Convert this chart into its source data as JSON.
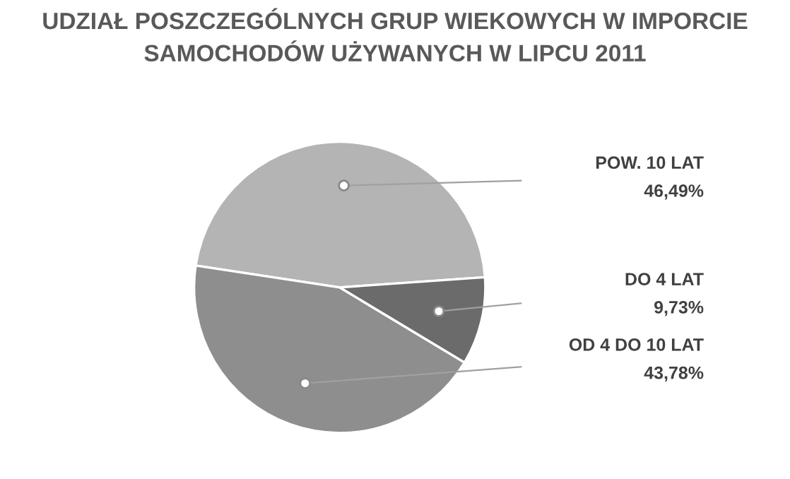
{
  "chart_data": {
    "type": "pie",
    "title": "UDZIAŁ POSZCZEGÓLNYCH GRUP WIEKOWYCH W IMPORCIE\nSAMOCHODÓW UŻYWANYCH W LIPCU 2011",
    "categories": [
      "POW. 10 LAT",
      "OD 4 DO 10 LAT",
      "DO 4 LAT"
    ],
    "values": [
      46.49,
      43.78,
      9.73
    ],
    "value_labels": [
      "46,49%",
      "43,78%",
      "9,73%"
    ],
    "colors": [
      "#b4b4b4",
      "#8e8e8e",
      "#6b6b6b"
    ],
    "legend": false
  }
}
